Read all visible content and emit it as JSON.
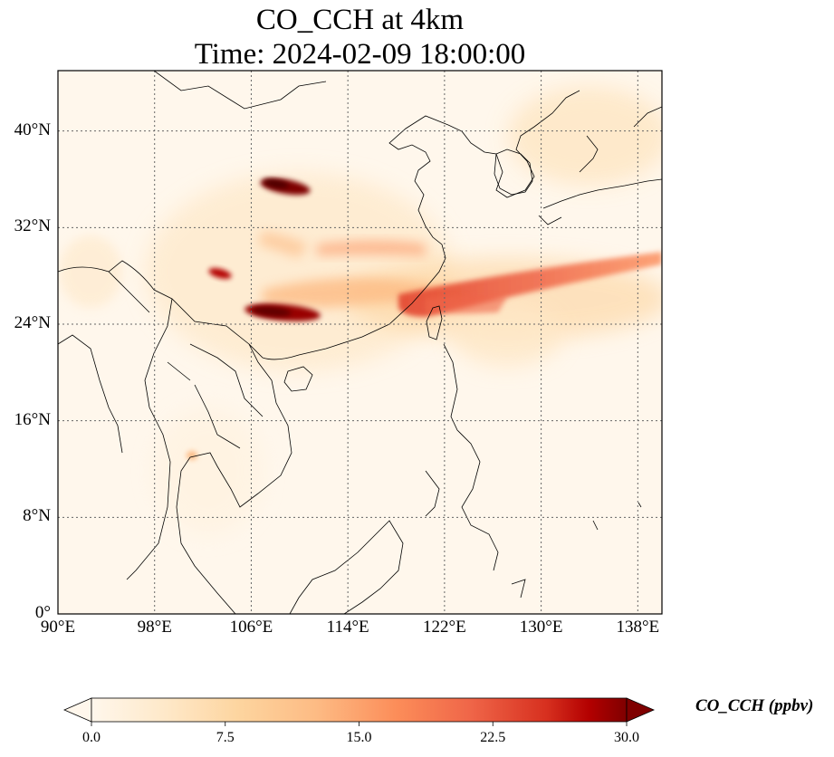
{
  "title": {
    "line1": "CO_CCH at 4km",
    "line2": "Time: 2024-02-09 18:00:00"
  },
  "map": {
    "projection": "PlateCarree",
    "lon_range": [
      90,
      140
    ],
    "lat_range": [
      0,
      45
    ],
    "gridlines": "dotted",
    "x_ticks": [
      {
        "value": 90,
        "label": "90°E"
      },
      {
        "value": 98,
        "label": "98°E"
      },
      {
        "value": 106,
        "label": "106°E"
      },
      {
        "value": 114,
        "label": "114°E"
      },
      {
        "value": 122,
        "label": "122°E"
      },
      {
        "value": 130,
        "label": "130°E"
      },
      {
        "value": 138,
        "label": "138°E"
      }
    ],
    "y_ticks": [
      {
        "value": 0,
        "label": "0°"
      },
      {
        "value": 8,
        "label": "8°N"
      },
      {
        "value": 16,
        "label": "16°N"
      },
      {
        "value": 24,
        "label": "24°N"
      },
      {
        "value": 32,
        "label": "32°N"
      },
      {
        "value": 40,
        "label": "40°N"
      }
    ]
  },
  "colorbar": {
    "label": "CO_CCH (ppbv)",
    "colormap": "OrRd",
    "min": 0.0,
    "max": 30.0,
    "extend": "both",
    "ticks": [
      "0.0",
      "7.5",
      "15.0",
      "22.5",
      "30.0"
    ],
    "tick_values": [
      0,
      7.5,
      15,
      22.5,
      30
    ]
  },
  "colors": {
    "background_low": "#fff7ec",
    "low": "#fee8c8",
    "mid_low": "#fdd49e",
    "mid": "#fc8d59",
    "high": "#d7301f",
    "max": "#7f0000"
  }
}
